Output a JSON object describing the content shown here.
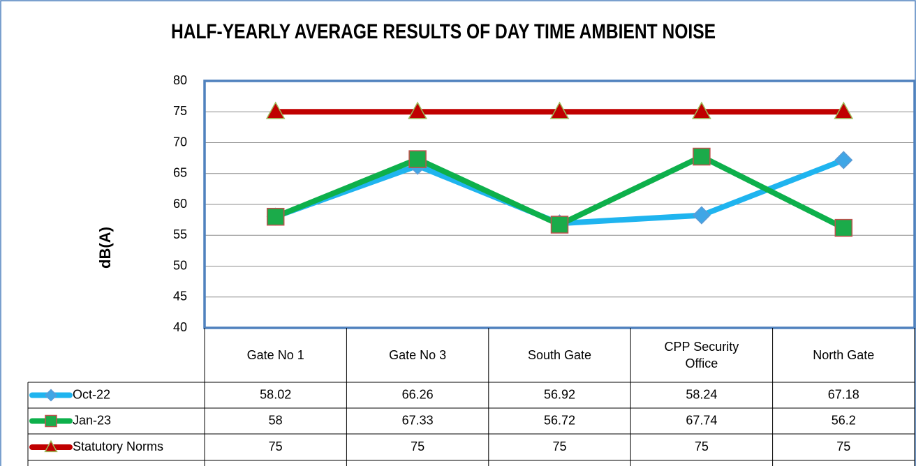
{
  "chart_data": {
    "type": "line",
    "title": "HALF-YEARLY AVERAGE RESULTS OF DAY TIME AMBIENT NOISE",
    "y_label": "dB(A)",
    "categories": [
      "Gate No 1",
      "Gate No 3",
      "South Gate",
      "CPP Security Office",
      "North Gate"
    ],
    "series": [
      {
        "name": "Oct-22",
        "color": "#1fb4ef",
        "marker": "diamond",
        "marker_color": "#3fa6e6",
        "marker_edge": "#5b9bd5",
        "values": [
          58.02,
          66.26,
          56.92,
          58.24,
          67.18
        ]
      },
      {
        "name": "Jan-23",
        "color": "#0db04b",
        "marker": "square",
        "marker_color": "#1bab4a",
        "marker_edge": "#c0504d",
        "values": [
          58,
          67.33,
          56.72,
          67.74,
          56.2
        ]
      },
      {
        "name": "Statutory Norms",
        "color": "#c00000",
        "marker": "triangle",
        "marker_color": "#c00000",
        "marker_edge": "#9bbb59",
        "values": [
          75,
          75,
          75,
          75,
          75
        ]
      }
    ],
    "ylim": [
      40,
      80
    ],
    "yticks": [
      40,
      45,
      50,
      55,
      60,
      65,
      70,
      75,
      80
    ],
    "grid": true,
    "data_table": true
  }
}
